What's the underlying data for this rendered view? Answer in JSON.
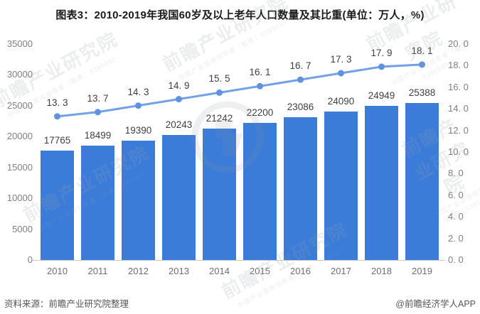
{
  "title": "图表3：2010-2019年我国60岁及以上老年人口数量及其比重(单位：万人，%)",
  "footer": {
    "source": "资料来源：前瞻产业研究院整理",
    "credit": "@前瞻经济学人APP"
  },
  "watermark": {
    "brand": "前瞻产业研究院",
    "tagline": "中国产业咨询领导者（股票：839599）"
  },
  "colors": {
    "bar": "#3b7cd9",
    "line": "#73a1e6",
    "marker": "#5f93e0",
    "axis_text": "#808080",
    "data_label": "#3f3f3f",
    "baseline": "#cccccc",
    "title_text": "#1a1a1a",
    "footer_text": "#555555"
  },
  "chart_data": {
    "type": "bar+line",
    "title": "图表3：2010-2019年我国60岁及以上老年人口数量及其比重(单位：万人，%)",
    "categories": [
      "2010",
      "2011",
      "2012",
      "2013",
      "2014",
      "2015",
      "2016",
      "2017",
      "2018",
      "2019"
    ],
    "series": [
      {
        "id": "population-bars",
        "type": "bar",
        "axis": "left",
        "values": [
          17765,
          18499,
          19390,
          20243,
          21242,
          22200,
          23086,
          24090,
          24949,
          25388
        ],
        "labels": [
          "17765",
          "18499",
          "19390",
          "20243",
          "21242",
          "22200",
          "23086",
          "24090",
          "24949",
          "25388"
        ]
      },
      {
        "id": "share-line",
        "type": "line",
        "axis": "right",
        "values": [
          13.3,
          13.7,
          14.3,
          14.9,
          15.5,
          16.1,
          16.7,
          17.3,
          17.9,
          18.1
        ],
        "labels": [
          "13. 3",
          "13. 7",
          "14. 3",
          "14. 9",
          "15. 5",
          "16. 1",
          "16. 7",
          "17. 3",
          "17. 9",
          "18. 1"
        ]
      }
    ],
    "left_axis": {
      "min": 0,
      "max": 35000,
      "ticks": [
        "35000",
        "30000",
        "25000",
        "20000",
        "15000",
        "10000",
        "5000",
        "0"
      ]
    },
    "right_axis": {
      "min": 0,
      "max": 20,
      "ticks": [
        "20. 0",
        "18. 0",
        "16. 0",
        "14. 0",
        "12. 0",
        "10. 0",
        "8. 0",
        "6. 0",
        "4. 0",
        "2. 0",
        "0. 0"
      ]
    },
    "grid": false,
    "legend": false,
    "xlabel": "",
    "ylabel_left": "",
    "ylabel_right": ""
  }
}
